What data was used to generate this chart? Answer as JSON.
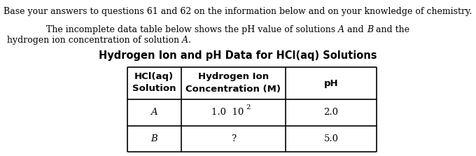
{
  "bg_color": "#ffffff",
  "top_text": "Base your answers to questions 61 and 62 on the information below and on your knowledge of chemistry.",
  "line1_prefix": "    The incomplete data table below shows the pH value of solutions ",
  "line1_A": "A",
  "line1_mid": " and ",
  "line1_B": "B",
  "line1_suffix": " and the",
  "line2_prefix": "hydrogen ion concentration of solution ",
  "line2_A": "A",
  "line2_suffix": ".",
  "table_title": "Hydrogen Ion and pH Data for HCl(aq) Solutions",
  "col1_header_line1": "HCl(aq)",
  "col1_header_line2": "Solution",
  "col2_header_line1": "Hydrogen Ion",
  "col2_header_line2": "Concentration (M)",
  "col3_header": "pH",
  "row1_col1": "A",
  "row1_col2_main": "1.0  10",
  "row1_col2_exp": "2",
  "row1_col3": "2.0",
  "row2_col1": "B",
  "row2_col2": "?",
  "row2_col3": "5.0",
  "font_size_body": 9.0,
  "font_size_title": 10.5,
  "font_size_table": 9.5,
  "fig_width": 6.8,
  "fig_height": 2.23,
  "dpi": 100
}
